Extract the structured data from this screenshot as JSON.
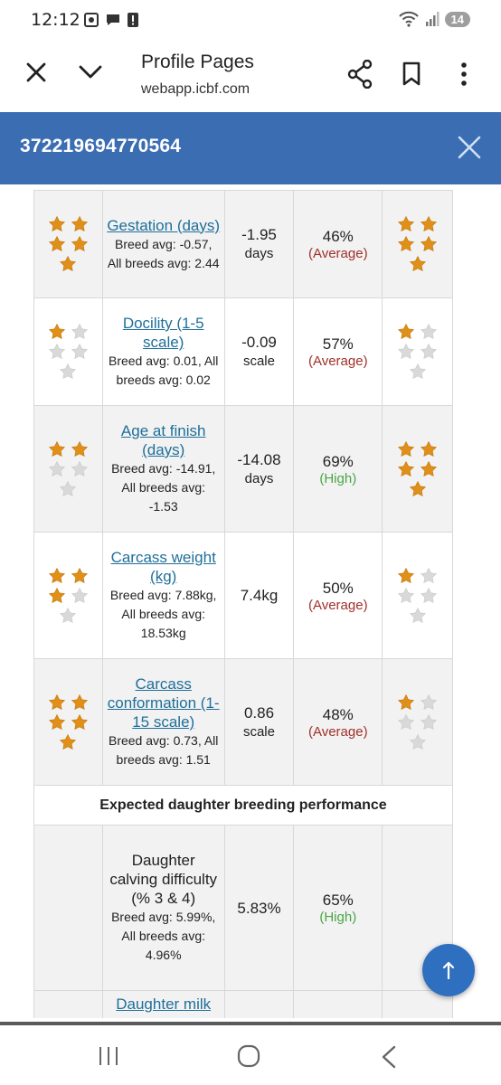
{
  "status_bar": {
    "time": "12:12",
    "battery": "14",
    "icons": [
      "screenshot-icon",
      "chat-icon",
      "alert-icon",
      "wifi-icon",
      "signal-icon"
    ]
  },
  "browser": {
    "title": "Profile Pages",
    "url": "webapp.icbf.com"
  },
  "modal": {
    "title": "372219694770564"
  },
  "traits": [
    {
      "name": "Gestation (days)",
      "avg": "Breed avg: -0.57, All breeds avg: 2.44",
      "value": "-1.95",
      "unit": "days",
      "reliability": "46%",
      "rel_label": "(Average)",
      "rel_class": "average",
      "stars_left": 5,
      "stars_right": 5,
      "linked": true,
      "shade": "gray"
    },
    {
      "name": "Docility (1-5 scale)",
      "avg": "Breed avg: 0.01, All breeds avg: 0.02",
      "value": "-0.09",
      "unit": "scale",
      "reliability": "57%",
      "rel_label": "(Average)",
      "rel_class": "average",
      "stars_left": 1,
      "stars_right": 1,
      "linked": true,
      "shade": "white"
    },
    {
      "name": "Age at finish (days)",
      "avg": "Breed avg: -14.91, All breeds avg: -1.53",
      "value": "-14.08",
      "unit": "days",
      "reliability": "69%",
      "rel_label": "(High)",
      "rel_class": "high",
      "stars_left": 2,
      "stars_right": 5,
      "linked": true,
      "shade": "gray"
    },
    {
      "name": "Carcass weight (kg)",
      "avg": "Breed avg: 7.88kg, All breeds avg: 18.53kg",
      "value": "7.4kg",
      "unit": "",
      "reliability": "50%",
      "rel_label": "(Average)",
      "rel_class": "average",
      "stars_left": 3,
      "stars_right": 1,
      "linked": true,
      "shade": "white"
    },
    {
      "name": "Carcass conformation (1-15 scale)",
      "avg": "Breed avg: 0.73, All breeds avg: 1.51",
      "value": "0.86",
      "unit": "scale",
      "reliability": "48%",
      "rel_label": "(Average)",
      "rel_class": "average",
      "stars_left": 5,
      "stars_right": 1,
      "linked": true,
      "shade": "gray"
    }
  ],
  "section": {
    "title": "Expected daughter breeding performance"
  },
  "daughter_traits": [
    {
      "name": "Daughter calving difficulty (% 3 & 4)",
      "avg": "Breed avg: 5.99%, All breeds avg: 4.96%",
      "value": "5.83%",
      "unit": "",
      "reliability": "65%",
      "rel_label": "(High)",
      "rel_class": "high",
      "stars_left": 0,
      "stars_right": 0,
      "linked": false,
      "shade": "gray"
    },
    {
      "name": "Daughter milk",
      "avg": "",
      "value": "",
      "unit": "",
      "reliability": "",
      "rel_label": "",
      "rel_class": "",
      "stars_left": 0,
      "stars_right": 0,
      "linked": true,
      "shade": "gray"
    }
  ],
  "fab": {
    "icon": "arrow-up-icon"
  },
  "nav": {
    "icons": [
      "recent-apps-icon",
      "home-icon",
      "back-icon"
    ]
  },
  "colors": {
    "header_blue": "#3b6db3",
    "link": "#1f6f9a",
    "star_gold": "#e08f18",
    "star_empty": "#d9d9d9",
    "average_red": "#a0302a",
    "high_green": "#49a644",
    "fab_blue": "#2f6fc0"
  }
}
